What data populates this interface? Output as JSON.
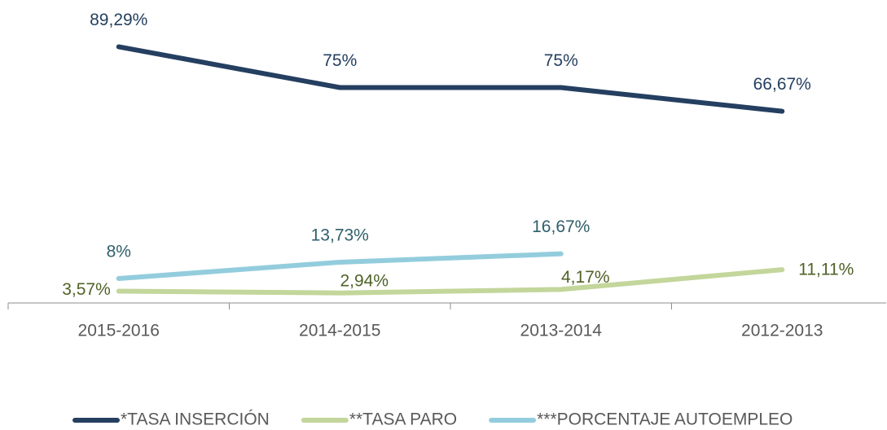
{
  "chart_data": {
    "type": "line",
    "categories": [
      "2015-2016",
      "2014-2015",
      "2013-2014",
      "2012-2013"
    ],
    "ylim": [
      0,
      100
    ],
    "legend": "bottom",
    "series": [
      {
        "name": "*TASA INSERCIÓN",
        "color": "#243f60",
        "label_color": "#243f60",
        "values": [
          89.29,
          75,
          75,
          66.67
        ],
        "value_labels": [
          "89,29%",
          "75%",
          "75%",
          "66,67%"
        ]
      },
      {
        "name": "**TASA PARO",
        "color": "#c3d69b",
        "label_color": "#4f6228",
        "values": [
          3.57,
          2.94,
          4.17,
          11.11
        ],
        "value_labels": [
          "3,57%",
          "2,94%",
          "4,17%",
          "11,11%"
        ]
      },
      {
        "name": "***PORCENTAJE AUTOEMPLEO",
        "color": "#93cddd",
        "label_color": "#2f5f6b",
        "values": [
          8,
          13.73,
          16.67,
          null
        ],
        "value_labels": [
          "8%",
          "13,73%",
          "16,67%",
          null
        ]
      }
    ]
  }
}
